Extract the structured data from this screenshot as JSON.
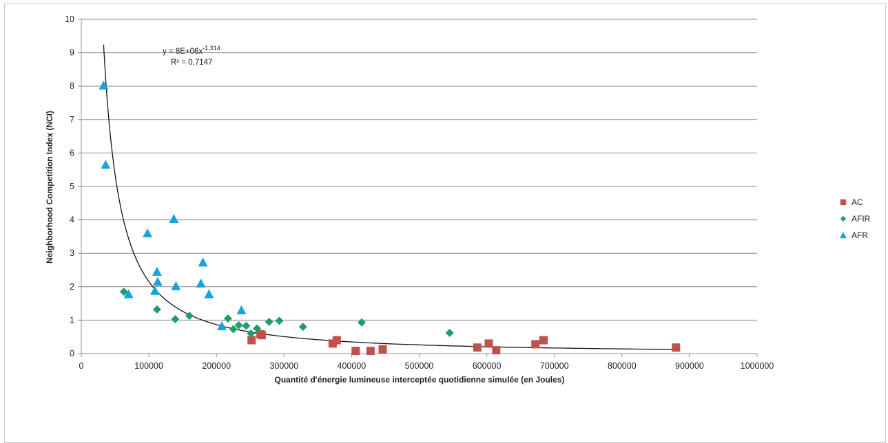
{
  "chart_data": {
    "type": "scatter",
    "xlabel": "Quantité d'énergie lumineuse interceptée quotidienne simulée (en Joules)",
    "ylabel": "Neighborhood Competition Index (NCI)",
    "xlim": [
      0,
      1000000
    ],
    "ylim": [
      0,
      10
    ],
    "x_ticks": [
      "0",
      "100000",
      "200000",
      "300000",
      "400000",
      "500000",
      "600000",
      "700000",
      "800000",
      "900000",
      "1000000"
    ],
    "y_ticks": [
      "0",
      "1",
      "2",
      "3",
      "4",
      "5",
      "6",
      "7",
      "8",
      "9",
      "10"
    ],
    "grid": "horizontal",
    "legend_position": "right",
    "series": [
      {
        "name": "AC",
        "marker": "square",
        "color": "#c0504d",
        "points": [
          [
            252000,
            0.4
          ],
          [
            265000,
            0.58
          ],
          [
            267000,
            0.55
          ],
          [
            372000,
            0.3
          ],
          [
            378000,
            0.4
          ],
          [
            406000,
            0.08
          ],
          [
            428000,
            0.08
          ],
          [
            446000,
            0.13
          ],
          [
            586000,
            0.18
          ],
          [
            603000,
            0.3
          ],
          [
            614000,
            0.1
          ],
          [
            672000,
            0.28
          ],
          [
            684000,
            0.4
          ],
          [
            880000,
            0.18
          ]
        ]
      },
      {
        "name": "AFIR",
        "marker": "diamond",
        "color": "#1e9e68",
        "points": [
          [
            63000,
            1.85
          ],
          [
            112000,
            1.32
          ],
          [
            139000,
            1.03
          ],
          [
            160000,
            1.13
          ],
          [
            217000,
            1.05
          ],
          [
            225000,
            0.73
          ],
          [
            233000,
            0.85
          ],
          [
            244000,
            0.83
          ],
          [
            251000,
            0.6
          ],
          [
            260000,
            0.75
          ],
          [
            278000,
            0.95
          ],
          [
            293000,
            0.98
          ],
          [
            328000,
            0.8
          ],
          [
            415000,
            0.93
          ],
          [
            545000,
            0.62
          ]
        ]
      },
      {
        "name": "AFR",
        "marker": "triangle",
        "color": "#1aa3d9",
        "points": [
          [
            33000,
            8.02
          ],
          [
            36000,
            5.65
          ],
          [
            70000,
            1.78
          ],
          [
            98000,
            3.6
          ],
          [
            109000,
            1.88
          ],
          [
            112000,
            2.45
          ],
          [
            113000,
            2.15
          ],
          [
            137000,
            4.03
          ],
          [
            140000,
            2.02
          ],
          [
            177000,
            2.1
          ],
          [
            180000,
            2.73
          ],
          [
            189000,
            1.78
          ],
          [
            208000,
            0.82
          ],
          [
            237000,
            1.3
          ]
        ]
      }
    ],
    "trendline": {
      "type": "power",
      "a": 8000000,
      "b": -1.314,
      "x_range": [
        33000,
        880000
      ]
    },
    "annotations": {
      "equation_base": "y = 8E+06x",
      "equation_exp": "-1,314",
      "r2": "R² = 0,7147"
    }
  }
}
